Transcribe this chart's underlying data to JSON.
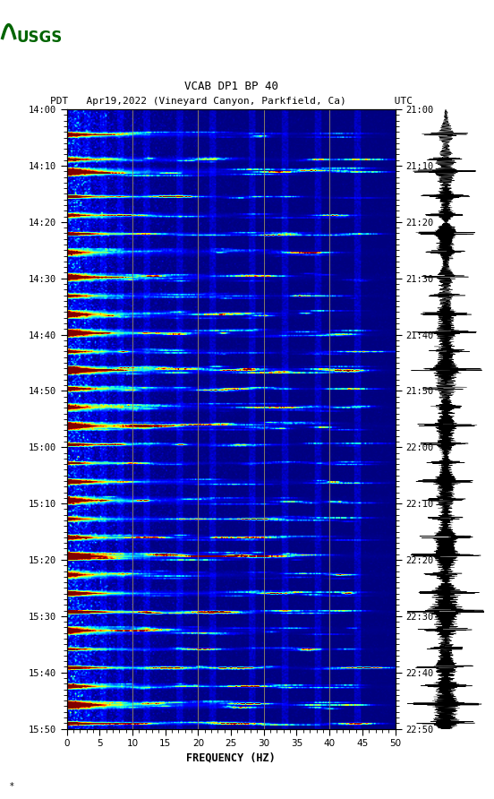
{
  "title_line1": "VCAB DP1 BP 40",
  "title_line2_pdt": "PDT   Apr19,2022 (Vineyard Canyon, Parkfield, Ca)        UTC",
  "xlabel": "FREQUENCY (HZ)",
  "freq_min": 0,
  "freq_max": 50,
  "time_labels_pdt": [
    "14:00",
    "14:10",
    "14:20",
    "14:30",
    "14:40",
    "14:50",
    "15:00",
    "15:10",
    "15:20",
    "15:30",
    "15:40",
    "15:50"
  ],
  "time_labels_utc": [
    "21:00",
    "21:10",
    "21:20",
    "21:30",
    "21:40",
    "21:50",
    "22:00",
    "22:10",
    "22:20",
    "22:30",
    "22:40",
    "22:50"
  ],
  "freq_ticks": [
    0,
    5,
    10,
    15,
    20,
    25,
    30,
    35,
    40,
    45,
    50
  ],
  "vertical_grid_freqs": [
    10,
    20,
    30,
    40
  ],
  "grid_color": "#a09060",
  "background_color": "#ffffff",
  "fig_width": 5.52,
  "fig_height": 8.92,
  "usgs_logo_color": "#006400",
  "event_times": [
    0.04,
    0.08,
    0.1,
    0.14,
    0.17,
    0.2,
    0.23,
    0.27,
    0.3,
    0.33,
    0.36,
    0.39,
    0.42,
    0.45,
    0.48,
    0.51,
    0.54,
    0.57,
    0.6,
    0.63,
    0.66,
    0.69,
    0.72,
    0.75,
    0.78,
    0.81,
    0.84,
    0.87,
    0.9,
    0.93,
    0.96,
    0.99
  ],
  "event_strengths": [
    4,
    3,
    5,
    4,
    3,
    5,
    3,
    4,
    3,
    4,
    5,
    3,
    6,
    4,
    3,
    5,
    4,
    3,
    5,
    4,
    3,
    4,
    6,
    3,
    5,
    7,
    4,
    3,
    5,
    4,
    6,
    5
  ],
  "waveform_seed": 123
}
